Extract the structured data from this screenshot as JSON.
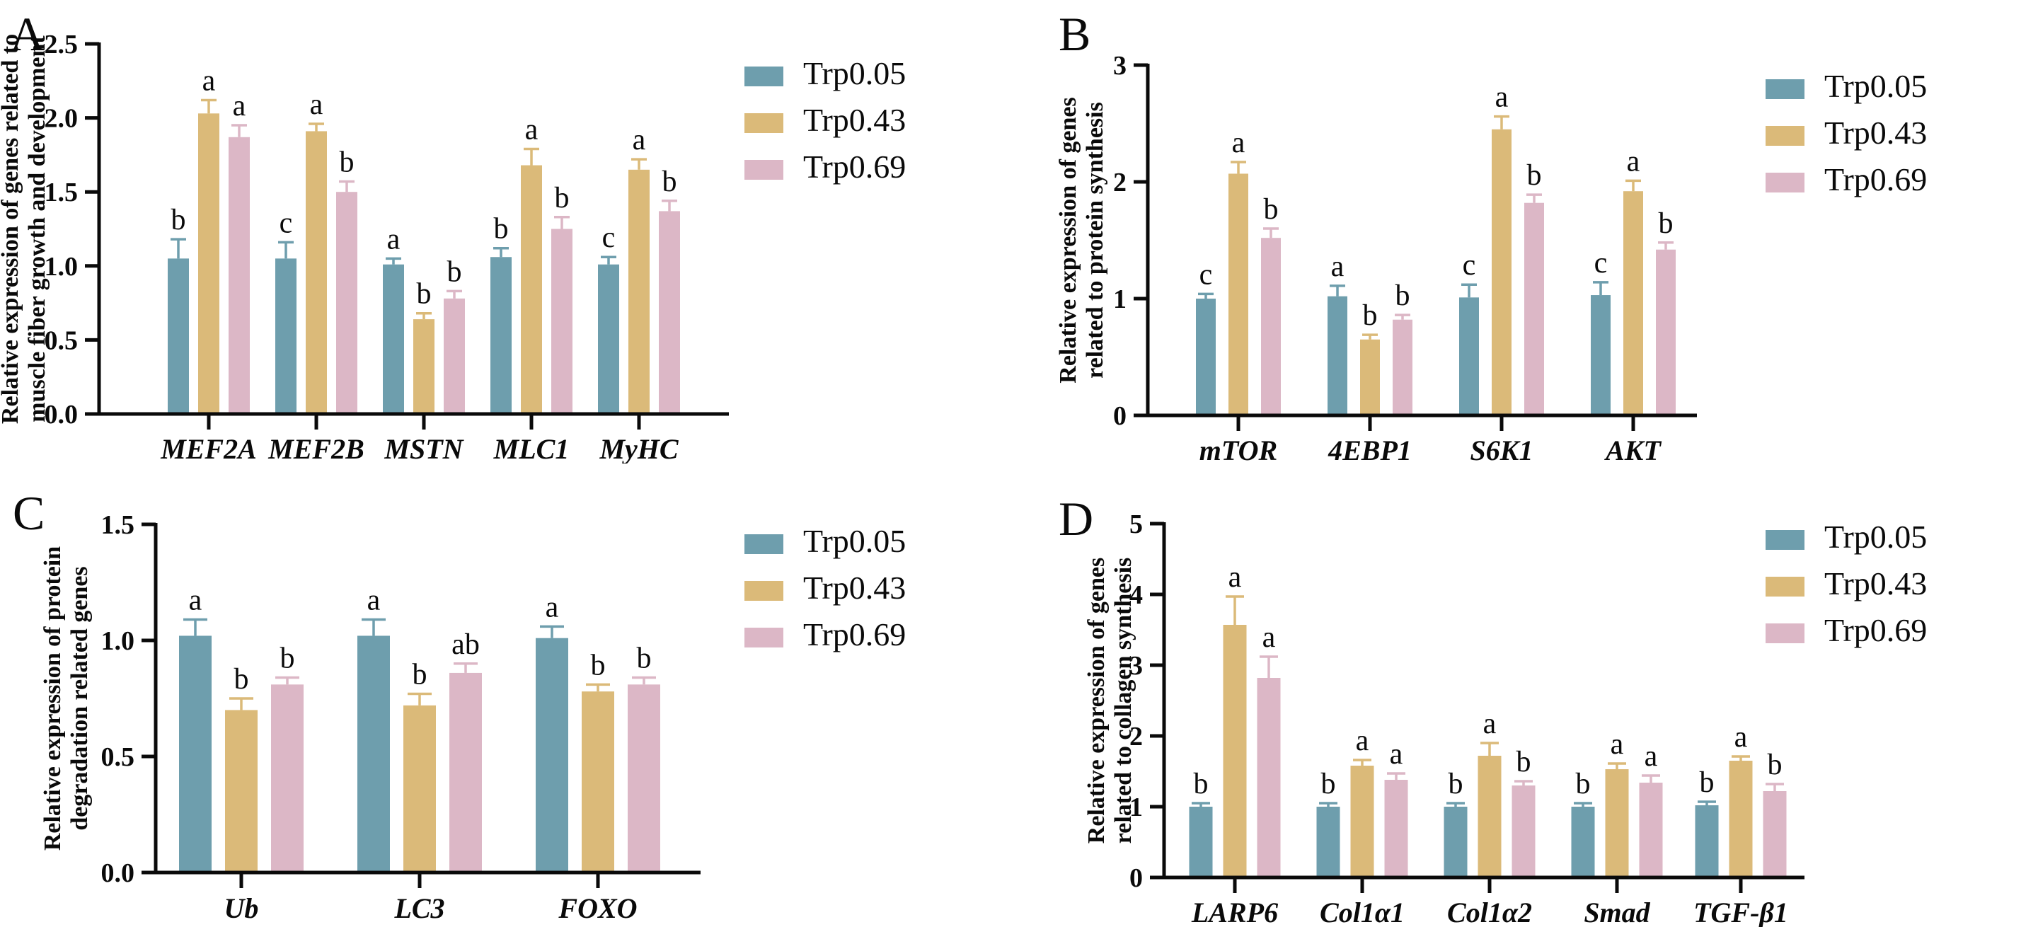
{
  "figure": {
    "background": "#ffffff",
    "text_color": "#0a0a0a",
    "series_colors": {
      "Trp0.05": "#6E9EAD",
      "Trp0.43": "#DBBA79",
      "Trp0.69": "#DCB7C6"
    },
    "legend_labels": [
      "Trp0.05",
      "Trp0.43",
      "Trp0.69"
    ]
  },
  "chart_data": [
    {
      "panel": "A",
      "type": "bar",
      "ylabel_line1": "Relative expression of genes related to",
      "ylabel_line2": "muscle fiber growth and development",
      "categories": [
        "MEF2A",
        "MEF2B",
        "MSTN",
        "MLC1",
        "MyHC"
      ],
      "ylim": [
        0,
        2.5
      ],
      "yticks": [
        "0.0",
        "0.5",
        "1.0",
        "1.5",
        "2.0",
        "2.5"
      ],
      "grid": false,
      "legend_position": "right-top",
      "series": [
        {
          "name": "Trp0.05",
          "color": "#6E9EAD",
          "values": [
            1.05,
            1.05,
            1.01,
            1.06,
            1.01
          ],
          "errors": [
            0.13,
            0.11,
            0.04,
            0.06,
            0.05
          ],
          "letters": [
            "b",
            "c",
            "a",
            "b",
            "c"
          ]
        },
        {
          "name": "Trp0.43",
          "color": "#DBBA79",
          "values": [
            2.03,
            1.91,
            0.64,
            1.68,
            1.65
          ],
          "errors": [
            0.09,
            0.05,
            0.04,
            0.11,
            0.07
          ],
          "letters": [
            "a",
            "a",
            "b",
            "a",
            "a"
          ]
        },
        {
          "name": "Trp0.69",
          "color": "#DCB7C6",
          "values": [
            1.87,
            1.5,
            0.78,
            1.25,
            1.37
          ],
          "errors": [
            0.08,
            0.07,
            0.05,
            0.08,
            0.07
          ],
          "letters": [
            "a",
            "b",
            "b",
            "b",
            "b"
          ]
        }
      ]
    },
    {
      "panel": "B",
      "type": "bar",
      "ylabel_line1": "Relative expression of genes",
      "ylabel_line2": "related to protein synthesis",
      "categories": [
        "mTOR",
        "4EBP1",
        "S6K1",
        "AKT"
      ],
      "ylim": [
        0,
        3
      ],
      "yticks": [
        "0",
        "1",
        "2",
        "3"
      ],
      "grid": false,
      "legend_position": "right-top",
      "series": [
        {
          "name": "Trp0.05",
          "color": "#6E9EAD",
          "values": [
            1.0,
            1.02,
            1.01,
            1.03
          ],
          "errors": [
            0.04,
            0.09,
            0.11,
            0.11
          ],
          "letters": [
            "c",
            "a",
            "c",
            "c"
          ]
        },
        {
          "name": "Trp0.43",
          "color": "#DBBA79",
          "values": [
            2.07,
            0.65,
            2.45,
            1.92
          ],
          "errors": [
            0.1,
            0.04,
            0.11,
            0.09
          ],
          "letters": [
            "a",
            "b",
            "a",
            "a"
          ]
        },
        {
          "name": "Trp0.69",
          "color": "#DCB7C6",
          "values": [
            1.52,
            0.82,
            1.82,
            1.42
          ],
          "errors": [
            0.08,
            0.04,
            0.07,
            0.06
          ],
          "letters": [
            "b",
            "b",
            "b",
            "b"
          ]
        }
      ]
    },
    {
      "panel": "C",
      "type": "bar",
      "ylabel_line1": "Relative expression of protein",
      "ylabel_line2": "degradation related genes",
      "categories": [
        "Ub",
        "LC3",
        "FOXO"
      ],
      "ylim": [
        0,
        1.5
      ],
      "yticks": [
        "0.0",
        "0.5",
        "1.0",
        "1.5"
      ],
      "grid": false,
      "legend_position": "right-top",
      "series": [
        {
          "name": "Trp0.05",
          "color": "#6E9EAD",
          "values": [
            1.02,
            1.02,
            1.01
          ],
          "errors": [
            0.07,
            0.07,
            0.05
          ],
          "letters": [
            "a",
            "a",
            "a"
          ]
        },
        {
          "name": "Trp0.43",
          "color": "#DBBA79",
          "values": [
            0.7,
            0.72,
            0.78
          ],
          "errors": [
            0.05,
            0.05,
            0.03
          ],
          "letters": [
            "b",
            "b",
            "b"
          ]
        },
        {
          "name": "Trp0.69",
          "color": "#DCB7C6",
          "values": [
            0.81,
            0.86,
            0.81
          ],
          "errors": [
            0.03,
            0.04,
            0.03
          ],
          "letters": [
            "b",
            "ab",
            "b"
          ]
        }
      ]
    },
    {
      "panel": "D",
      "type": "bar",
      "ylabel_line1": "Relative expression of genes",
      "ylabel_line2": "related to collagen synthesis",
      "categories": [
        "LARP6",
        "Col1α1",
        "Col1α2",
        "Smad",
        "TGF-β1"
      ],
      "ylim": [
        0,
        5
      ],
      "yticks": [
        "0",
        "1",
        "2",
        "3",
        "4",
        "5"
      ],
      "grid": false,
      "legend_position": "right-top",
      "series": [
        {
          "name": "Trp0.05",
          "color": "#6E9EAD",
          "values": [
            1.0,
            1.0,
            1.0,
            1.0,
            1.02
          ],
          "errors": [
            0.05,
            0.05,
            0.05,
            0.05,
            0.05
          ],
          "letters": [
            "b",
            "b",
            "b",
            "b",
            "b"
          ]
        },
        {
          "name": "Trp0.43",
          "color": "#DBBA79",
          "values": [
            3.57,
            1.58,
            1.72,
            1.53,
            1.65
          ],
          "errors": [
            0.4,
            0.08,
            0.18,
            0.08,
            0.06
          ],
          "letters": [
            "a",
            "a",
            "a",
            "a",
            "a"
          ]
        },
        {
          "name": "Trp0.69",
          "color": "#DCB7C6",
          "values": [
            2.82,
            1.38,
            1.3,
            1.34,
            1.22
          ],
          "errors": [
            0.3,
            0.09,
            0.06,
            0.1,
            0.1
          ],
          "letters": [
            "a",
            "a",
            "b",
            "a",
            "b"
          ]
        }
      ]
    }
  ]
}
